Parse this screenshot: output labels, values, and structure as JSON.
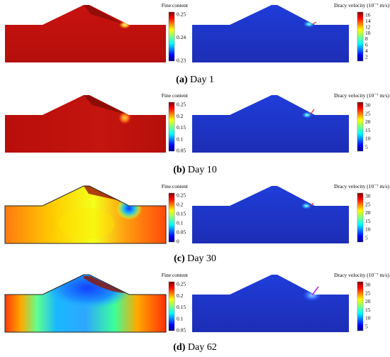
{
  "figure": {
    "rows": [
      {
        "caption_letter": "(a)",
        "caption_text": "Day 1",
        "left_title": "Fine content",
        "left_ticks": [
          "0.25",
          "0.24",
          "0.23"
        ],
        "right_title": "Dracy velocity (10⁻⁷ m/s)",
        "right_ticks": [
          "16",
          "14",
          "12",
          "10",
          "8",
          "6",
          "4",
          "2"
        ]
      },
      {
        "caption_letter": "(b)",
        "caption_text": "Day 10",
        "left_title": "Fine content",
        "left_ticks": [
          "0.25",
          "0.2",
          "0.15",
          "0.1",
          "0.05"
        ],
        "right_title": "Dracy velocity (10⁻⁷ m/s)",
        "right_ticks": [
          "30",
          "25",
          "20",
          "15",
          "10",
          "5"
        ]
      },
      {
        "caption_letter": "(c)",
        "caption_text": "Day 30",
        "left_title": "Fine content",
        "left_ticks": [
          "0.25",
          "0.2",
          "0.15",
          "0.1",
          "0.05",
          "0"
        ],
        "right_title": "Dracy velocity (10⁻⁷ m/s)",
        "right_ticks": [
          "30",
          "25",
          "20",
          "15",
          "10",
          "5"
        ]
      },
      {
        "caption_letter": "(d)",
        "caption_text": "Day 62",
        "left_title": "Fine content",
        "left_ticks": [
          "0.25",
          "0.2",
          "0.15",
          "0.1",
          "0.05"
        ],
        "right_title": "Dracy velocity (10⁻⁷ m/s)",
        "right_ticks": [
          "30",
          "25",
          "20",
          "15",
          "10",
          "5"
        ]
      }
    ]
  }
}
